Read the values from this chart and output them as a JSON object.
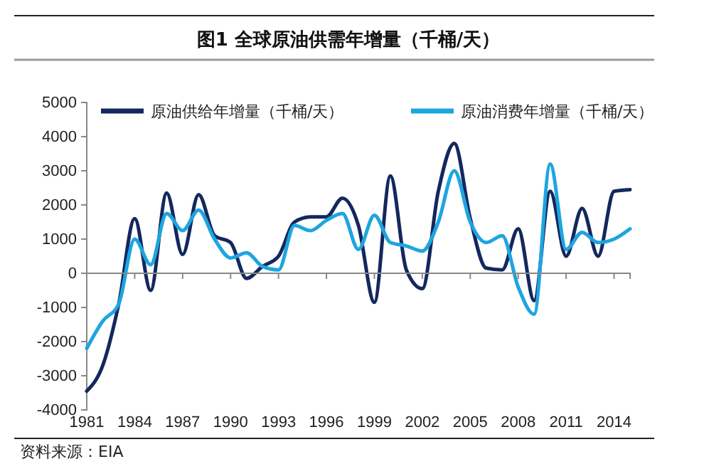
{
  "chart_data": {
    "type": "line",
    "title": "图1  全球原油供需年增量（千桶/天）",
    "x": [
      1981,
      1982,
      1983,
      1984,
      1985,
      1986,
      1987,
      1988,
      1989,
      1990,
      1991,
      1992,
      1993,
      1994,
      1995,
      1996,
      1997,
      1998,
      1999,
      2000,
      2001,
      2002,
      2003,
      2004,
      2005,
      2006,
      2007,
      2008,
      2009,
      2010,
      2011,
      2012,
      2013,
      2014,
      2015
    ],
    "series": [
      {
        "name": "原油供给年增量（千桶/天）",
        "color": "#14285e",
        "values": [
          -3450,
          -2700,
          -900,
          1600,
          -500,
          2350,
          550,
          2300,
          1100,
          900,
          -150,
          200,
          500,
          1500,
          1650,
          1650,
          2200,
          1400,
          -850,
          2850,
          100,
          -450,
          2400,
          3800,
          1600,
          150,
          100,
          1300,
          -800,
          2400,
          500,
          1900,
          500,
          2400,
          2450
        ]
      },
      {
        "name": "原油消费年增量（千桶/天）",
        "color": "#1ea5e0",
        "values": [
          -2200,
          -1400,
          -900,
          1000,
          250,
          1750,
          1250,
          1850,
          1000,
          450,
          600,
          200,
          100,
          1400,
          1250,
          1550,
          1750,
          700,
          1700,
          900,
          800,
          650,
          1500,
          3000,
          1500,
          900,
          1100,
          -400,
          -1200,
          3200,
          700,
          1200,
          900,
          1000,
          1300
        ]
      }
    ],
    "xlim": [
      1981,
      2015
    ],
    "xticks": [
      1981,
      1984,
      1987,
      1990,
      1993,
      1996,
      1999,
      2002,
      2005,
      2008,
      2011,
      2014
    ],
    "ylim": [
      -4000,
      5000
    ],
    "yticks": [
      -4000,
      -3000,
      -2000,
      -1000,
      0,
      1000,
      2000,
      3000,
      4000,
      5000
    ],
    "grid": false,
    "legend": "top",
    "marker": "none",
    "line_style": "solid",
    "annotations": [
      "资料来源：EIA"
    ]
  }
}
